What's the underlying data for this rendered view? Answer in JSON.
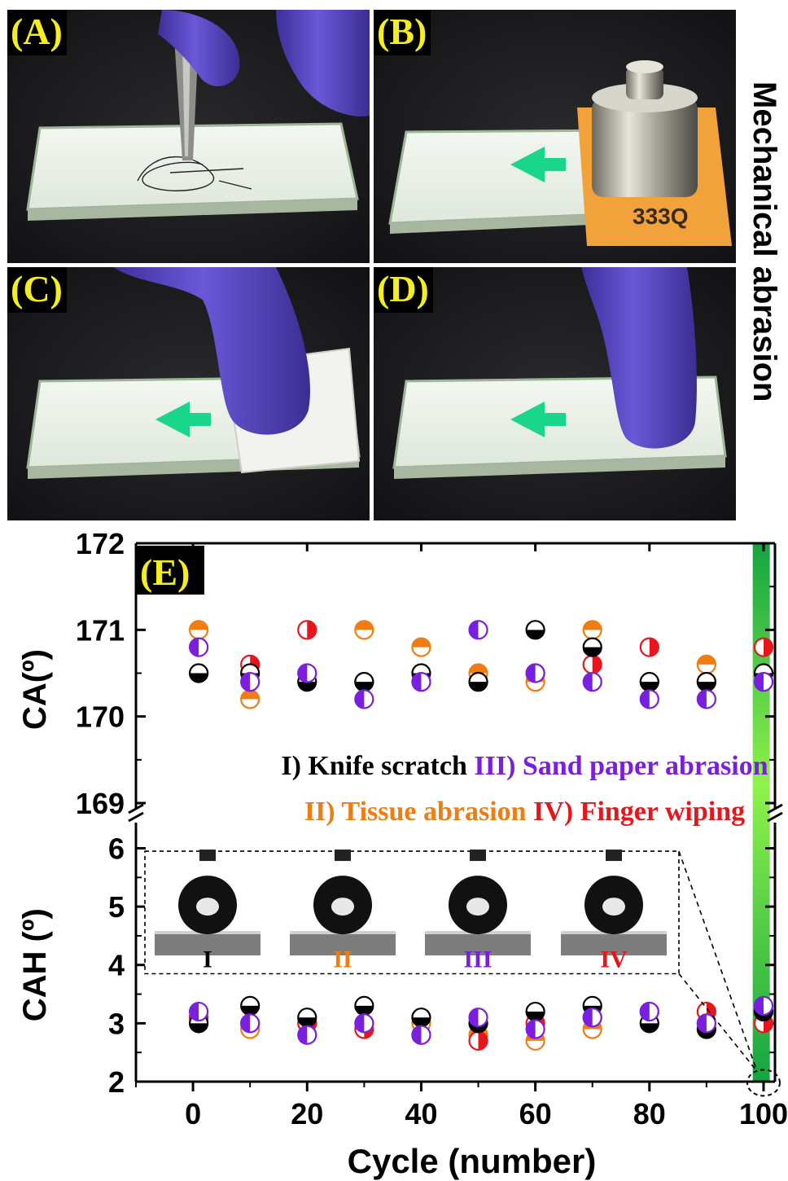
{
  "side_title": "Mechanical abrasion",
  "panels": [
    {
      "label": "(A)"
    },
    {
      "label": "(B)",
      "weight_tag": "333Q"
    },
    {
      "label": "(C)"
    },
    {
      "label": "(D)"
    }
  ],
  "colors": {
    "knife": "#000000",
    "tissue": "#f07d14",
    "sand": "#7a1fe0",
    "finger": "#e8161c",
    "label_yellow": "#f5ee1e",
    "green_arrow": "#19d68a",
    "glove": "#5a47c8"
  },
  "chart_data": {
    "type": "scatter",
    "panel_label": "(E)",
    "xlabel": "Cycle (number)",
    "x_ticks": [
      "0",
      "20",
      "40",
      "60",
      "80",
      "100"
    ],
    "xlim": [
      -10,
      102
    ],
    "broken_y_axis": true,
    "top": {
      "ylabel": "CA(º)",
      "ylim": [
        169,
        172
      ],
      "y_ticks": [
        "169",
        "170",
        "171",
        "172"
      ],
      "series": [
        {
          "name": "I) Knife scratch",
          "color": "#000000",
          "fill": "bottom",
          "x": [
            1,
            10,
            20,
            30,
            40,
            50,
            60,
            70,
            80,
            90,
            100
          ],
          "y": [
            170.5,
            170.5,
            170.4,
            170.4,
            170.5,
            170.4,
            171.0,
            170.8,
            170.4,
            170.4,
            170.5
          ]
        },
        {
          "name": "II) Tissue abrasion",
          "color": "#f07d14",
          "fill": "top",
          "x": [
            1,
            10,
            20,
            30,
            40,
            50,
            60,
            70,
            80,
            90,
            100
          ],
          "y": [
            171.0,
            170.2,
            170.5,
            171.0,
            170.8,
            170.5,
            170.4,
            171.0,
            170.4,
            170.6,
            170.4
          ]
        },
        {
          "name": "III) Sand paper abrasion",
          "color": "#7a1fe0",
          "fill": "left",
          "x": [
            1,
            10,
            20,
            30,
            40,
            50,
            60,
            70,
            80,
            90,
            100
          ],
          "y": [
            170.8,
            170.4,
            170.5,
            170.2,
            170.4,
            171.0,
            170.5,
            170.4,
            170.2,
            170.2,
            170.4
          ]
        },
        {
          "name": "IV) Finger wiping",
          "color": "#e8161c",
          "fill": "right",
          "x": [
            1,
            10,
            20,
            30,
            40,
            50,
            60,
            70,
            80,
            90,
            100
          ],
          "y": [
            170.5,
            170.6,
            171.0,
            170.4,
            170.4,
            170.4,
            170.5,
            170.6,
            170.8,
            170.4,
            170.8
          ]
        }
      ]
    },
    "bottom": {
      "ylabel": "CAH (º)",
      "ylim": [
        2,
        6.3
      ],
      "y_ticks": [
        "2",
        "3",
        "4",
        "5",
        "6"
      ],
      "series": [
        {
          "name": "I) Knife scratch",
          "color": "#000000",
          "fill": "bottom",
          "x": [
            1,
            10,
            20,
            30,
            40,
            50,
            60,
            70,
            80,
            90,
            100
          ],
          "y": [
            3.0,
            3.3,
            3.1,
            3.3,
            3.1,
            3.0,
            3.2,
            3.3,
            3.0,
            2.9,
            3.2
          ]
        },
        {
          "name": "II) Tissue abrasion",
          "color": "#f07d14",
          "fill": "top",
          "x": [
            1,
            10,
            20,
            30,
            40,
            50,
            60,
            70,
            80,
            90,
            100
          ],
          "y": [
            3.1,
            2.9,
            3.0,
            3.0,
            3.0,
            2.8,
            2.7,
            2.9,
            3.2,
            3.0,
            3.0
          ]
        },
        {
          "name": "III) Sand paper abrasion",
          "color": "#7a1fe0",
          "fill": "left",
          "x": [
            1,
            10,
            20,
            30,
            40,
            50,
            60,
            70,
            80,
            90,
            100
          ],
          "y": [
            3.2,
            3.0,
            2.8,
            3.0,
            2.8,
            3.1,
            2.9,
            3.1,
            3.2,
            3.0,
            3.3
          ]
        },
        {
          "name": "IV) Finger wiping",
          "color": "#e8161c",
          "fill": "right",
          "x": [
            1,
            10,
            20,
            30,
            40,
            50,
            60,
            70,
            80,
            90,
            100
          ],
          "y": [
            3.1,
            3.0,
            3.0,
            2.9,
            2.8,
            2.7,
            3.0,
            3.1,
            3.2,
            3.2,
            3.0
          ]
        }
      ]
    },
    "legend_line1": [
      {
        "text": "I) Knife scratch",
        "color": "#000000"
      },
      {
        "text": "III) Sand paper abrasion",
        "color": "#7a1fe0"
      }
    ],
    "legend_line2": [
      {
        "text": "II) Tissue abrasion",
        "color": "#f07d14"
      },
      {
        "text": "IV) Finger wiping",
        "color": "#e8161c"
      }
    ],
    "inset_labels": [
      {
        "text": "I",
        "color": "#000000"
      },
      {
        "text": "II",
        "color": "#f07d14"
      },
      {
        "text": "III",
        "color": "#7a1fe0"
      },
      {
        "text": "IV",
        "color": "#e8161c"
      }
    ]
  }
}
